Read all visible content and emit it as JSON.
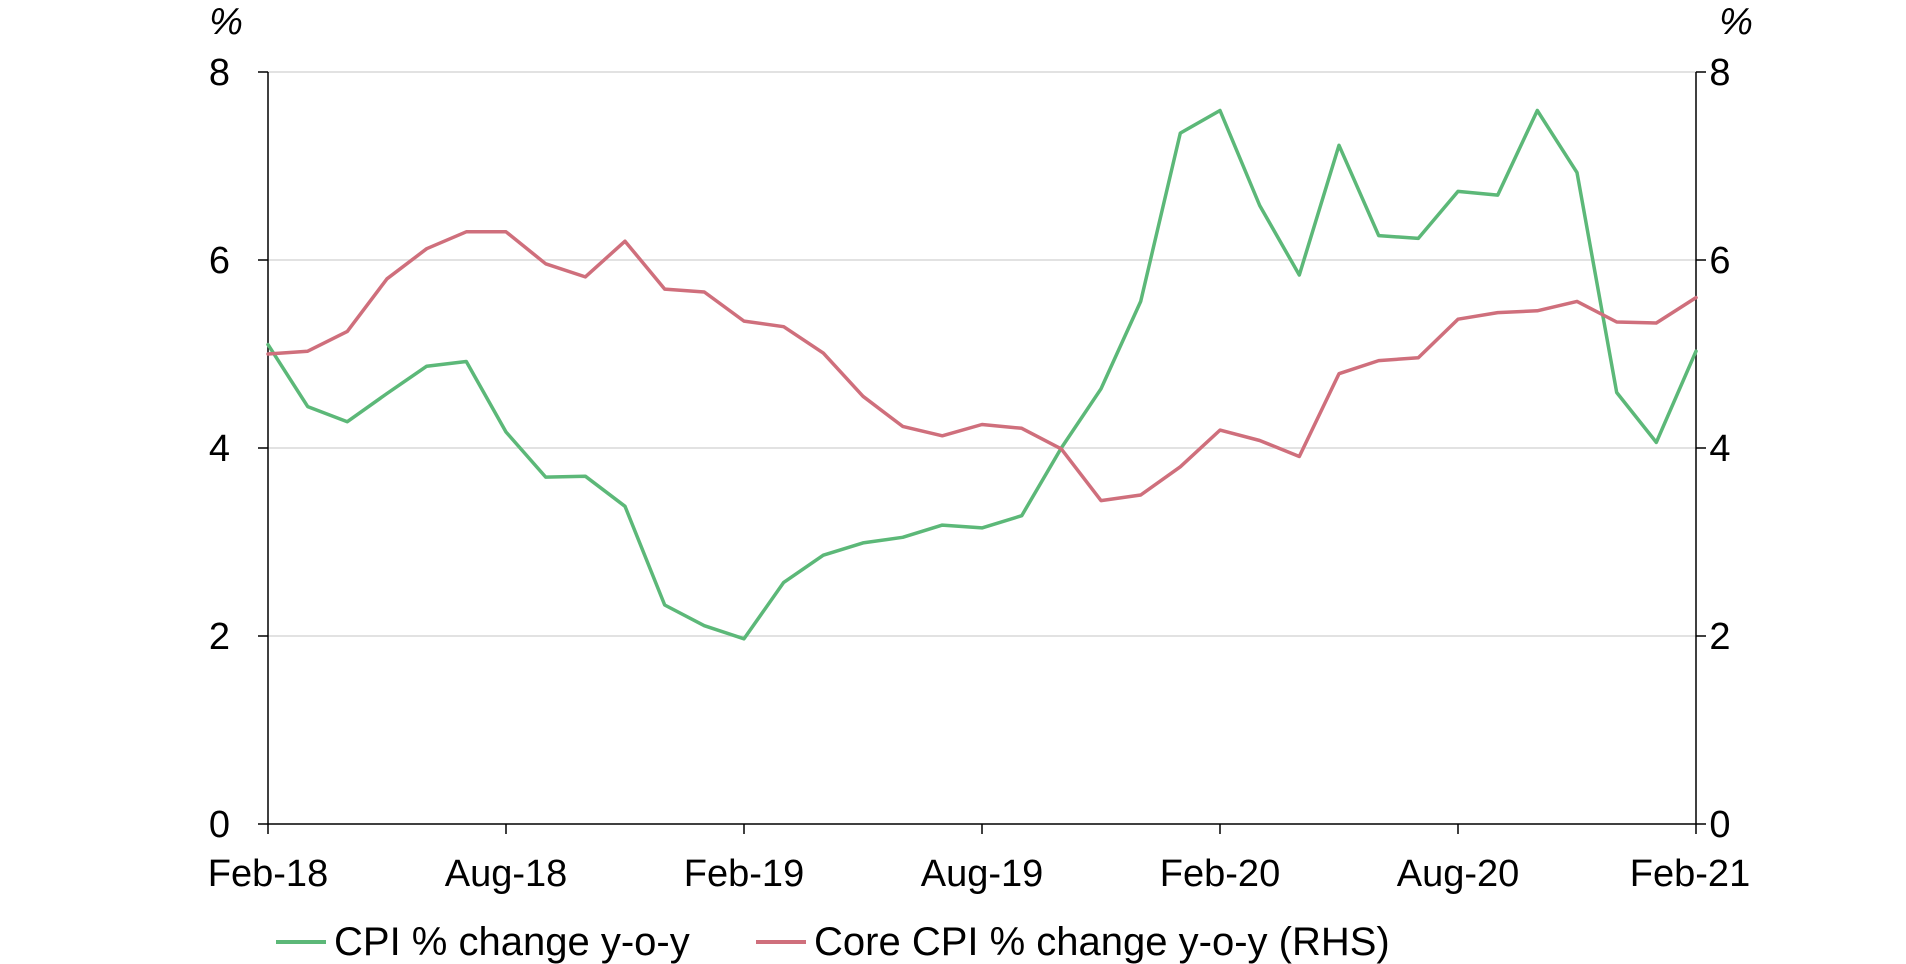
{
  "chart_data": {
    "type": "line",
    "title": "",
    "xlabel": "",
    "left_axis": {
      "unit_label": "%",
      "ylim": [
        0,
        8
      ],
      "ticks": [
        "0",
        "2",
        "4",
        "6",
        "8"
      ]
    },
    "right_axis": {
      "unit_label": "%",
      "ylim": [
        0,
        8
      ],
      "ticks": [
        "0",
        "2",
        "4",
        "6",
        "8"
      ]
    },
    "x_tick_labels": [
      "Feb-18",
      "Aug-18",
      "Feb-19",
      "Aug-19",
      "Feb-20",
      "Aug-20",
      "Feb-21"
    ],
    "x": [
      "Feb-18",
      "Mar-18",
      "Apr-18",
      "May-18",
      "Jun-18",
      "Jul-18",
      "Aug-18",
      "Sep-18",
      "Oct-18",
      "Nov-18",
      "Dec-18",
      "Jan-19",
      "Feb-19",
      "Mar-19",
      "Apr-19",
      "May-19",
      "Jun-19",
      "Jul-19",
      "Aug-19",
      "Sep-19",
      "Oct-19",
      "Nov-19",
      "Dec-19",
      "Jan-20",
      "Feb-20",
      "Mar-20",
      "Apr-20",
      "May-20",
      "Jun-20",
      "Jul-20",
      "Aug-20",
      "Sep-20",
      "Oct-20",
      "Nov-20",
      "Dec-20",
      "Jan-21",
      "Feb-21"
    ],
    "grid": true,
    "legend_position": "bottom",
    "series": [
      {
        "name": "CPI % change y-o-y",
        "color": "#5cb878",
        "axis": "left",
        "values": [
          5.1,
          4.44,
          4.28,
          4.58,
          4.87,
          4.92,
          4.17,
          3.69,
          3.7,
          3.38,
          2.33,
          2.11,
          1.97,
          2.57,
          2.86,
          2.99,
          3.05,
          3.18,
          3.15,
          3.28,
          4.0,
          4.63,
          5.56,
          7.35,
          7.59,
          6.58,
          5.84,
          7.22,
          6.26,
          6.23,
          6.73,
          6.69,
          7.59,
          6.93,
          4.59,
          4.06,
          5.03
        ]
      },
      {
        "name": "Core CPI % change y-o-y (RHS)",
        "color": "#cf6f7c",
        "axis": "right",
        "values": [
          5.0,
          5.03,
          5.24,
          5.8,
          6.12,
          6.3,
          6.3,
          5.96,
          5.82,
          6.2,
          5.69,
          5.66,
          5.35,
          5.29,
          5.01,
          4.55,
          4.23,
          4.13,
          4.25,
          4.21,
          3.99,
          3.44,
          3.5,
          3.8,
          4.19,
          4.08,
          3.91,
          4.79,
          4.93,
          4.96,
          5.37,
          5.44,
          5.46,
          5.56,
          5.34,
          5.33,
          5.6
        ]
      }
    ]
  }
}
